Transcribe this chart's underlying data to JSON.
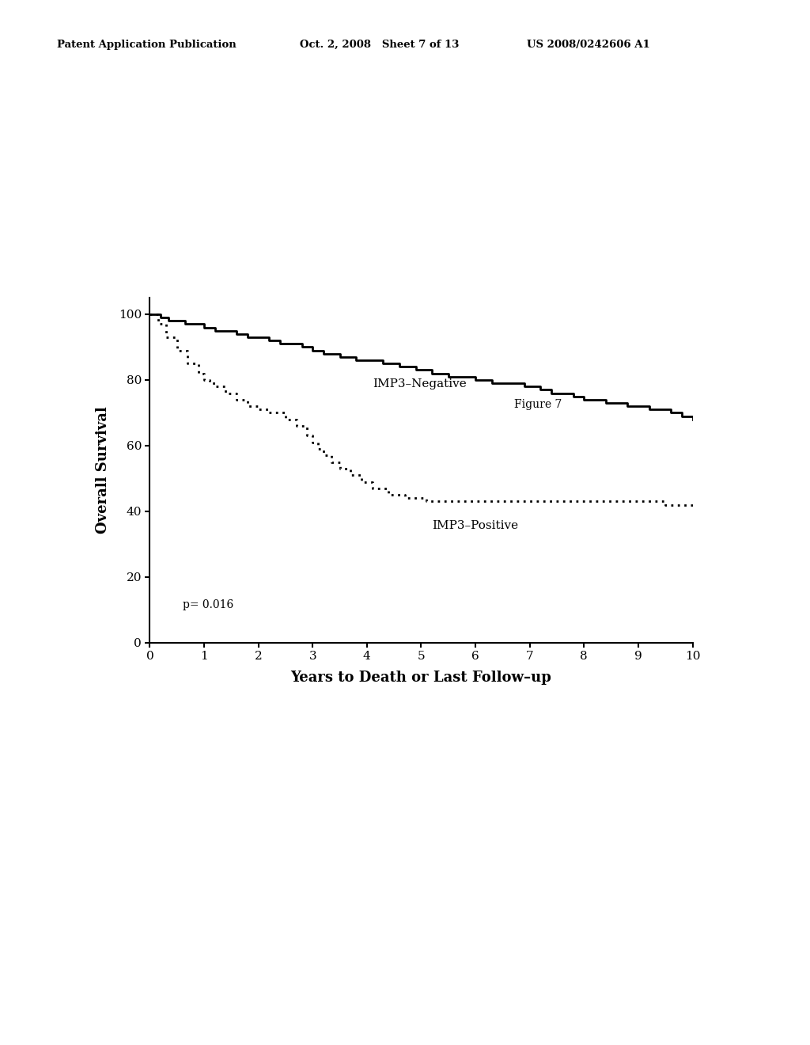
{
  "figure_label": "Figure 7",
  "header_left": "Patent Application Publication",
  "header_mid": "Oct. 2, 2008   Sheet 7 of 13",
  "header_right": "US 2008/0242606 A1",
  "xlabel": "Years to Death or Last Follow–up",
  "ylabel": "Overall Survival",
  "xlim": [
    0,
    10
  ],
  "ylim": [
    0,
    105
  ],
  "xticks": [
    0,
    1,
    2,
    3,
    4,
    5,
    6,
    7,
    8,
    9,
    10
  ],
  "yticks": [
    0,
    20,
    40,
    60,
    80,
    100
  ],
  "p_value_text": "p= 0.016",
  "label_negative": "IMP3–Negative",
  "label_positive": "IMP3–Positive",
  "negative_x": [
    0,
    0.1,
    0.2,
    0.35,
    0.5,
    0.65,
    0.8,
    1.0,
    1.2,
    1.4,
    1.6,
    1.8,
    2.0,
    2.2,
    2.4,
    2.6,
    2.8,
    3.0,
    3.2,
    3.5,
    3.8,
    4.0,
    4.3,
    4.6,
    4.9,
    5.2,
    5.5,
    5.8,
    6.0,
    6.3,
    6.6,
    6.9,
    7.0,
    7.2,
    7.4,
    7.6,
    7.8,
    8.0,
    8.2,
    8.4,
    8.6,
    8.8,
    9.0,
    9.2,
    9.4,
    9.6,
    9.8,
    10.0
  ],
  "negative_y": [
    100,
    100,
    99,
    98,
    98,
    97,
    97,
    96,
    95,
    95,
    94,
    93,
    93,
    92,
    91,
    91,
    90,
    89,
    88,
    87,
    86,
    86,
    85,
    84,
    83,
    82,
    81,
    81,
    80,
    79,
    79,
    78,
    78,
    77,
    76,
    76,
    75,
    74,
    74,
    73,
    73,
    72,
    72,
    71,
    71,
    70,
    69,
    68
  ],
  "positive_x": [
    0,
    0.15,
    0.3,
    0.5,
    0.7,
    0.9,
    1.0,
    1.1,
    1.2,
    1.4,
    1.6,
    1.8,
    2.0,
    2.2,
    2.5,
    2.7,
    2.9,
    3.0,
    3.1,
    3.2,
    3.35,
    3.5,
    3.7,
    3.9,
    4.1,
    4.4,
    4.7,
    5.0,
    5.1,
    5.2,
    5.5,
    6.0,
    6.5,
    7.0,
    7.5,
    8.0,
    8.5,
    9.0,
    9.5,
    10.0
  ],
  "positive_y": [
    100,
    97,
    93,
    89,
    85,
    82,
    80,
    79,
    78,
    76,
    74,
    72,
    71,
    70,
    68,
    66,
    63,
    61,
    59,
    57,
    55,
    53,
    51,
    49,
    47,
    45,
    44,
    44,
    43,
    43,
    43,
    43,
    43,
    43,
    43,
    43,
    43,
    43,
    42,
    41
  ]
}
